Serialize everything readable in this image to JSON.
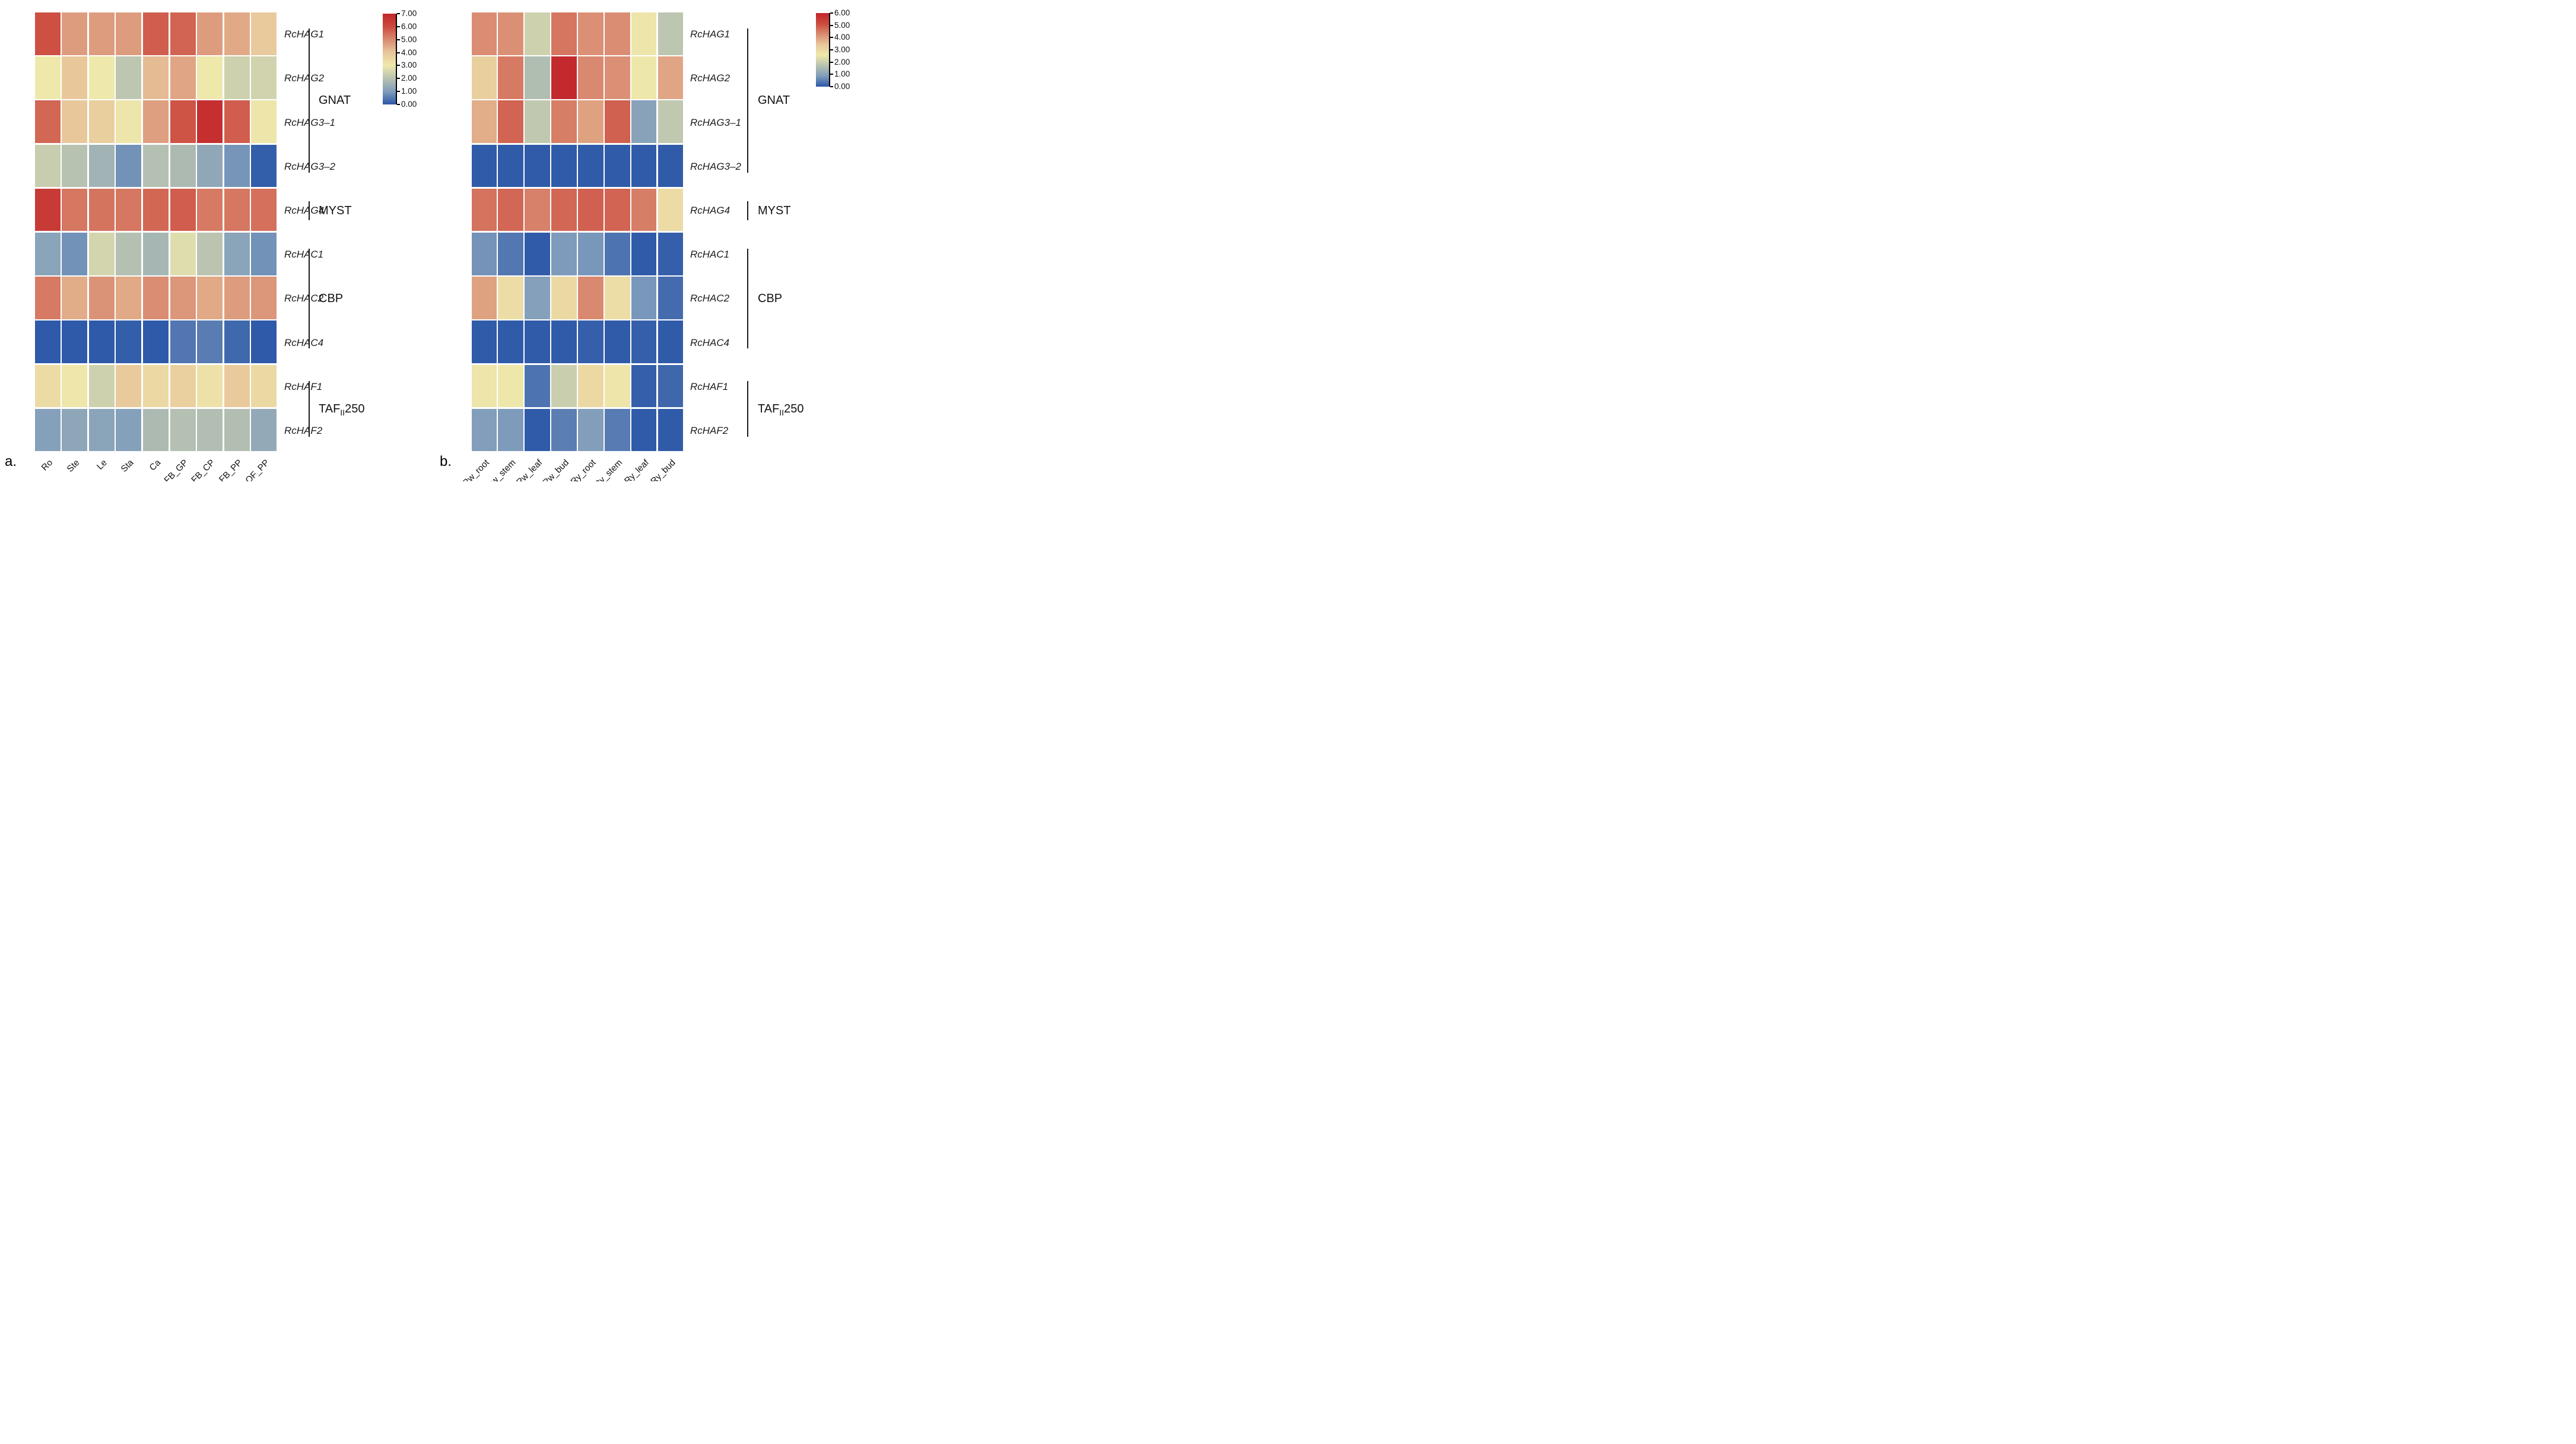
{
  "figure": {
    "panel_a_letter": "a.",
    "panel_b_letter": "b."
  },
  "colormap_stops": [
    "#2b57a8",
    "#7f9cbb",
    "#b7c2b0",
    "#eee8ab",
    "#e8c79b",
    "#d98a71",
    "#cc4a3d",
    "#c2262b"
  ],
  "chart_data": [
    {
      "type": "heatmap",
      "panel": "a",
      "columns": [
        "Ro",
        "Ste",
        "Le",
        "Sta",
        "Ca",
        "FB_GP",
        "FB_CP",
        "FB_PP",
        "OF_PP"
      ],
      "rows": [
        "RcHAG1",
        "RcHAG2",
        "RcHAG3–1",
        "RcHAG3–2",
        "RcHAG4",
        "RcHAC1",
        "RcHAC2",
        "RcHAC4",
        "RcHAF1",
        "RcHAF2"
      ],
      "groups": [
        {
          "label": "GNAT",
          "from_row": 0,
          "to_row": 3
        },
        {
          "label": "MYST",
          "from_row": 4,
          "to_row": 4
        },
        {
          "label": "CBP",
          "from_row": 5,
          "to_row": 7
        },
        {
          "label": "TAFII250",
          "parts": [
            [
              "TAF",
              false
            ],
            [
              "II",
              true
            ],
            [
              "250",
              false
            ]
          ],
          "from_row": 8,
          "to_row": 9
        }
      ],
      "values": [
        [
          5.9,
          4.7,
          4.7,
          4.7,
          5.7,
          5.6,
          4.7,
          4.5,
          3.9
        ],
        [
          3.0,
          4.0,
          3.0,
          2.1,
          4.2,
          4.55,
          3.0,
          2.4,
          2.45
        ],
        [
          5.55,
          4.0,
          3.8,
          3.1,
          4.65,
          5.85,
          6.75,
          5.7,
          3.1
        ],
        [
          2.3,
          2.0,
          1.6,
          0.85,
          1.95,
          1.8,
          1.3,
          0.9,
          0.1
        ],
        [
          6.45,
          5.3,
          5.35,
          5.3,
          5.55,
          5.7,
          5.25,
          5.3,
          5.4
        ],
        [
          1.2,
          0.85,
          2.5,
          1.95,
          1.7,
          2.7,
          2.05,
          1.2,
          0.85
        ],
        [
          5.25,
          4.45,
          4.85,
          4.5,
          4.95,
          4.8,
          4.5,
          4.7,
          4.8
        ],
        [
          0.05,
          0.05,
          0.05,
          0.1,
          0.05,
          0.45,
          0.55,
          0.25,
          0.05
        ],
        [
          3.4,
          3.05,
          2.4,
          3.9,
          3.5,
          3.75,
          3.2,
          3.9,
          3.45
        ],
        [
          1.1,
          1.25,
          1.2,
          1.1,
          1.8,
          1.95,
          1.9,
          1.9,
          1.35
        ]
      ],
      "scale": {
        "min": 0,
        "max": 7,
        "tick_labels": [
          "7.00",
          "6.00",
          "5.00",
          "4.00",
          "3.00",
          "2.00",
          "1.00",
          "0.00"
        ],
        "position": "right"
      },
      "grid": false,
      "xlabel": "",
      "ylabel": ""
    },
    {
      "type": "heatmap",
      "panel": "b",
      "columns": [
        "Rw_root",
        "Rw_stem",
        "Rw_leaf",
        "Rw_bud",
        "Ry_root",
        "Ry_stem",
        "Ry_leaf",
        "Ry_bud"
      ],
      "rows": [
        "RcHAG1",
        "RcHAG2",
        "RcHAG3–1",
        "RcHAG3–2",
        "RcHAG4",
        "RcHAC1",
        "RcHAC2",
        "RcHAC4",
        "RcHAF1",
        "RcHAF2"
      ],
      "groups": [
        {
          "label": "GNAT",
          "from_row": 0,
          "to_row": 3
        },
        {
          "label": "MYST",
          "from_row": 4,
          "to_row": 4
        },
        {
          "label": "CBP",
          "from_row": 5,
          "to_row": 7
        },
        {
          "label": "TAFII250",
          "parts": [
            [
              "TAF",
              false
            ],
            [
              "II",
              true
            ],
            [
              "250",
              false
            ]
          ],
          "from_row": 8,
          "to_row": 9
        }
      ],
      "values": [
        [
          4.25,
          4.2,
          2.05,
          4.55,
          4.2,
          4.25,
          2.65,
          1.8
        ],
        [
          3.25,
          4.5,
          1.6,
          5.9,
          4.3,
          4.2,
          2.6,
          3.9
        ],
        [
          3.8,
          4.8,
          1.85,
          4.45,
          3.95,
          4.85,
          1.0,
          1.85
        ],
        [
          0.05,
          0.05,
          0.05,
          0.05,
          0.05,
          0.05,
          0.05,
          0.05
        ],
        [
          4.6,
          4.75,
          4.4,
          4.75,
          4.85,
          4.8,
          4.45,
          2.9
        ],
        [
          0.75,
          0.4,
          0.05,
          0.85,
          0.8,
          0.35,
          0.05,
          0.1
        ],
        [
          3.95,
          2.85,
          0.95,
          2.95,
          4.3,
          2.85,
          0.8,
          0.25
        ],
        [
          0.05,
          0.05,
          0.05,
          0.05,
          0.1,
          0.05,
          0.1,
          0.05
        ],
        [
          2.65,
          2.55,
          0.35,
          2.0,
          3.0,
          2.65,
          0.1,
          0.2
        ],
        [
          0.9,
          0.85,
          0.05,
          0.5,
          0.9,
          0.45,
          0.05,
          0.05
        ]
      ],
      "scale": {
        "min": 0,
        "max": 6,
        "tick_labels": [
          "6.00",
          "5.00",
          "4.00",
          "3.00",
          "2.00",
          "1.00",
          "0.00"
        ],
        "position": "right"
      },
      "grid": false,
      "xlabel": "",
      "ylabel": ""
    }
  ]
}
